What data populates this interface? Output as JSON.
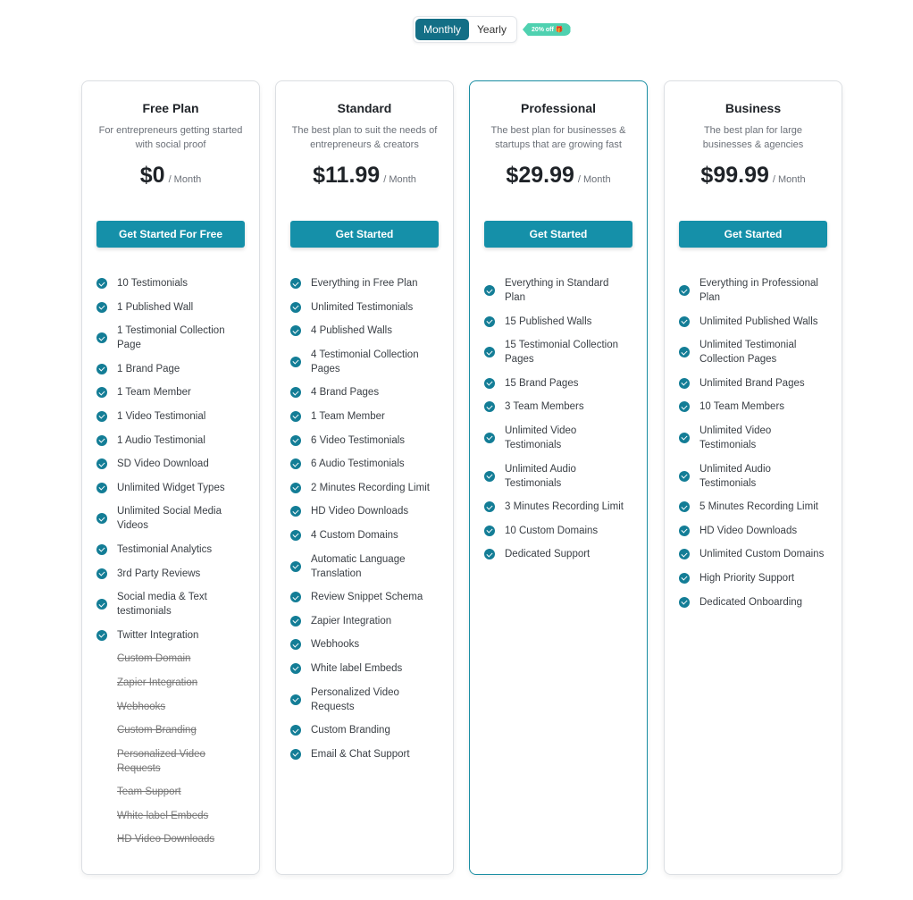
{
  "toggle": {
    "monthly": "Monthly",
    "yearly": "Yearly",
    "badge": "20% off 🎁",
    "active": "Monthly"
  },
  "colors": {
    "accent": "#1590a9",
    "toggle_active": "#136f86",
    "badge": "#4fd1b0"
  },
  "plans": [
    {
      "title": "Free Plan",
      "desc": "For entrepreneurs getting started with social proof",
      "price": "$0",
      "per": "/ Month",
      "button": "Get Started For Free",
      "highlighted": false,
      "features": [
        "10 Testimonials",
        "1 Published Wall",
        "1 Testimonial Collection Page",
        "1 Brand Page",
        "1 Team Member",
        "1 Video Testimonial",
        "1 Audio Testimonial",
        "SD Video Download",
        "Unlimited Widget Types",
        "Unlimited Social Media Videos",
        "Testimonial Analytics",
        "3rd Party Reviews",
        "Social media & Text testimonials",
        "Twitter Integration"
      ],
      "excluded": [
        "Custom Domain",
        "Zapier Integration",
        "Webhooks",
        "Custom Branding",
        "Personalized Video Requests",
        "Team Support",
        "White label Embeds",
        "HD Video Downloads"
      ]
    },
    {
      "title": "Standard",
      "desc": "The best plan to suit the needs of entrepreneurs & creators",
      "price": "$11.99",
      "per": "/ Month",
      "button": "Get Started",
      "highlighted": false,
      "features": [
        "Everything in Free Plan",
        "Unlimited Testimonials",
        "4 Published Walls",
        "4 Testimonial Collection Pages",
        "4 Brand Pages",
        "1 Team Member",
        "6 Video Testimonials",
        "6 Audio Testimonials",
        "2 Minutes Recording Limit",
        "HD Video Downloads",
        "4 Custom Domains",
        "Automatic Language Translation",
        "Review Snippet Schema",
        "Zapier Integration",
        "Webhooks",
        "White label Embeds",
        "Personalized Video Requests",
        "Custom Branding",
        "Email & Chat Support"
      ],
      "excluded": []
    },
    {
      "title": "Professional",
      "desc": "The best plan for businesses & startups that are growing fast",
      "price": "$29.99",
      "per": "/ Month",
      "button": "Get Started",
      "highlighted": true,
      "features": [
        "Everything in Standard Plan",
        "15 Published Walls",
        "15 Testimonial Collection Pages",
        "15 Brand Pages",
        "3 Team Members",
        "Unlimited Video Testimonials",
        "Unlimited Audio Testimonials",
        "3 Minutes Recording Limit",
        "10 Custom Domains",
        "Dedicated Support"
      ],
      "excluded": []
    },
    {
      "title": "Business",
      "desc": "The best plan for large businesses & agencies",
      "price": "$99.99",
      "per": "/ Month",
      "button": "Get Started",
      "highlighted": false,
      "features": [
        "Everything in Professional Plan",
        "Unlimited Published Walls",
        "Unlimited Testimonial Collection Pages",
        "Unlimited Brand Pages",
        "10 Team Members",
        "Unlimited Video Testimonials",
        "Unlimited Audio Testimonials",
        "5 Minutes Recording Limit",
        "HD Video Downloads",
        "Unlimited Custom Domains",
        "High Priority Support",
        "Dedicated Onboarding"
      ],
      "excluded": []
    }
  ]
}
